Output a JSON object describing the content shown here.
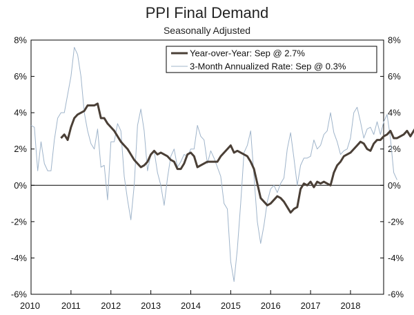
{
  "chart_data": {
    "type": "line",
    "title": "PPI Final Demand",
    "subtitle": "Seasonally Adjusted",
    "ylim": [
      -6,
      8
    ],
    "yticks": [
      -6,
      -4,
      -2,
      0,
      2,
      4,
      6,
      8
    ],
    "ytick_labels": [
      "-6%",
      "-4%",
      "-2%",
      "0%",
      "2%",
      "4%",
      "6%",
      "8%"
    ],
    "xlim": [
      2010.0,
      2018.83
    ],
    "xticks": [
      2010,
      2011,
      2012,
      2013,
      2014,
      2015,
      2016,
      2017,
      2018
    ],
    "xtick_labels": [
      "2010",
      "2011",
      "2012",
      "2013",
      "2014",
      "2015",
      "2016",
      "2017",
      "2018"
    ],
    "colors": {
      "yoy": "#4a3f36",
      "three_month": "#9fb4ca",
      "axis": "#000000"
    },
    "series": [
      {
        "name": "Year-over-Year: Sep @ 2.7%",
        "key": "yoy",
        "start": 2010.75,
        "step": 0.08333,
        "values": [
          2.6,
          2.8,
          2.5,
          3.2,
          3.7,
          3.9,
          4.0,
          4.1,
          4.4,
          4.4,
          4.4,
          4.5,
          3.7,
          3.7,
          3.4,
          3.2,
          3.0,
          2.7,
          2.4,
          2.2,
          2.0,
          1.7,
          1.4,
          1.2,
          1.0,
          1.1,
          1.3,
          1.7,
          1.9,
          1.7,
          1.8,
          1.7,
          1.6,
          1.4,
          1.3,
          0.9,
          0.9,
          1.2,
          1.7,
          1.8,
          1.6,
          1.0,
          1.1,
          1.2,
          1.3,
          1.3,
          1.3,
          1.3,
          1.6,
          1.8,
          2.0,
          2.2,
          1.8,
          1.9,
          1.8,
          1.7,
          1.6,
          1.3,
          0.9,
          0.1,
          -0.7,
          -0.9,
          -1.1,
          -1.0,
          -0.8,
          -0.6,
          -0.7,
          -0.9,
          -1.2,
          -1.5,
          -1.3,
          -1.2,
          -0.2,
          0.1,
          0.0,
          0.2,
          -0.1,
          0.2,
          0.1,
          0.2,
          0.1,
          0.0,
          0.7,
          1.1,
          1.3,
          1.6,
          1.7,
          1.8,
          2.0,
          2.2,
          2.4,
          2.3,
          2.0,
          1.9,
          2.3,
          2.5,
          2.5,
          2.7,
          2.8,
          3.0,
          2.6,
          2.6,
          2.7,
          2.8,
          3.0,
          2.7,
          3.0,
          3.3,
          3.2,
          3.1,
          2.9,
          2.8,
          2.7
        ]
      },
      {
        "name": "3-Month Annualized Rate: Sep @ 0.3%",
        "key": "three_month",
        "start": 2010.0,
        "step": 0.08333,
        "values": [
          3.3,
          3.2,
          0.8,
          2.4,
          1.2,
          0.8,
          0.8,
          2.5,
          3.7,
          4.0,
          4.0,
          5.0,
          6.0,
          7.6,
          7.2,
          6.0,
          4.0,
          3.0,
          2.3,
          2.0,
          3.1,
          1.0,
          1.1,
          -0.8,
          2.4,
          2.4,
          3.4,
          3.0,
          0.5,
          -0.8,
          -1.9,
          0.0,
          3.3,
          4.2,
          3.0,
          0.8,
          1.7,
          1.9,
          0.7,
          0.0,
          -1.1,
          0.4,
          1.6,
          2.0,
          1.0,
          1.3,
          1.7,
          1.6,
          2.0,
          2.0,
          3.3,
          2.7,
          2.5,
          1.2,
          1.9,
          1.5,
          1.0,
          0.5,
          -1.0,
          -1.3,
          -4.2,
          -5.3,
          -3.5,
          -1.0,
          1.8,
          2.2,
          3.0,
          0.5,
          -2.0,
          -3.2,
          -2.2,
          -0.9,
          -0.2,
          0.0,
          -0.4,
          0.1,
          0.4,
          2.0,
          2.9,
          1.5,
          0.0,
          1.1,
          1.5,
          1.5,
          1.6,
          2.5,
          2.0,
          2.2,
          2.8,
          3.0,
          4.0,
          2.9,
          2.4,
          1.7,
          1.9,
          2.0,
          2.6,
          4.0,
          4.3,
          3.5,
          2.6,
          3.1,
          3.2,
          2.8,
          3.5,
          2.8,
          3.5,
          3.9,
          2.6,
          0.7,
          0.3
        ]
      }
    ]
  }
}
